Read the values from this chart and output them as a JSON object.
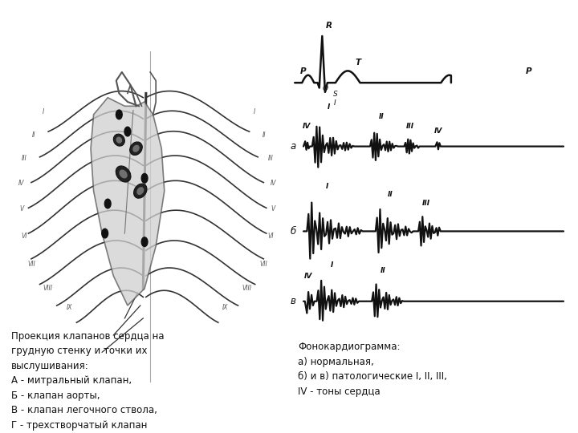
{
  "bg_color": "#ffffff",
  "left_text": "Проекция клапанов сердца на\nгрудную стенку и точки их\nвыслушивания:\nА - митральный клапан,\nБ - клапан аорты,\nВ - клапан легочного ствола,\nГ - трехстворчатый клапан",
  "right_text": "Фонокардиограмма:\nа) нормальная,\nб) и в) патологические I, II, III,\nIV - тоны сердца",
  "ecg_color": "#111111",
  "text_color": "#111111",
  "font_size_main": 8.5,
  "row_label_a": "а",
  "row_label_b": "б",
  "row_label_v": "в"
}
